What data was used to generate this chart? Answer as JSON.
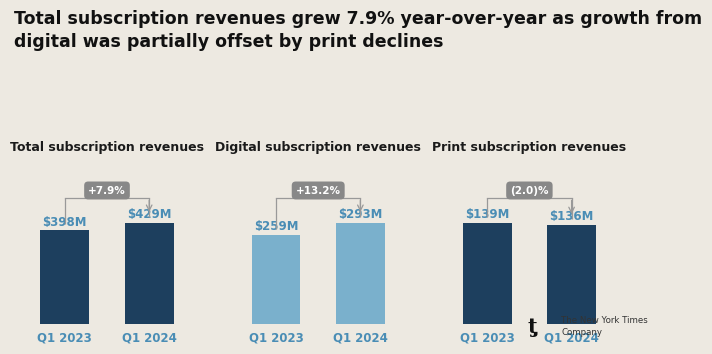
{
  "title": "Total subscription revenues grew 7.9% year-over-year as growth from\ndigital was partially offset by print declines",
  "title_fontsize": 12.5,
  "background_color": "#ede9e1",
  "groups": [
    {
      "label": "Total subscription revenues",
      "bars": [
        {
          "x_label": "Q1 2023",
          "value": 398,
          "display": "$398M"
        },
        {
          "x_label": "Q1 2024",
          "value": 429,
          "display": "$429M"
        }
      ],
      "color": "#1d3f5e",
      "change": "+7.9%",
      "change_positive": true,
      "arrow_to": 1
    },
    {
      "label": "Digital subscription revenues",
      "bars": [
        {
          "x_label": "Q1 2023",
          "value": 259,
          "display": "$259M"
        },
        {
          "x_label": "Q1 2024",
          "value": 293,
          "display": "$293M"
        }
      ],
      "color": "#7ab0cc",
      "change": "+13.2%",
      "change_positive": true,
      "arrow_to": 1
    },
    {
      "label": "Print subscription revenues",
      "bars": [
        {
          "x_label": "Q1 2023",
          "value": 139,
          "display": "$139M"
        },
        {
          "x_label": "Q1 2024",
          "value": 136,
          "display": "$136M"
        }
      ],
      "color": "#1d3f5e",
      "change": "(2.0)%",
      "change_positive": false,
      "arrow_to": 1
    }
  ],
  "label_color": "#4a8db5",
  "xlabel_color": "#4a8db5",
  "group_title_fontsize": 9,
  "bar_value_fontsize": 8.5,
  "xlabel_fontsize": 8.5,
  "arrow_color": "#999999",
  "badge_color": "#888888",
  "badge_text_color": "#ffffff",
  "nyt_logo_text": "The New York Times\nCompany"
}
